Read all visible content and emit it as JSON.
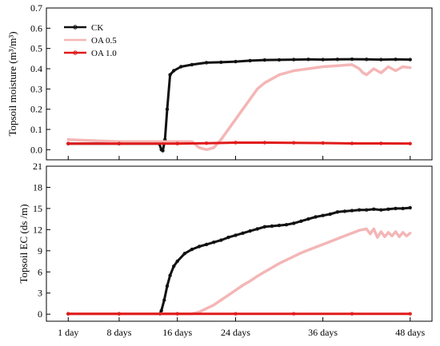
{
  "chart_data": {
    "type": "line",
    "x_tick_labels": [
      "1 day",
      "8 days",
      "16 days",
      "24 days",
      "36 days",
      "48 days"
    ],
    "x_tick_positions": [
      1,
      8,
      16,
      24,
      36,
      48
    ],
    "xlim": [
      -2,
      51
    ],
    "series_styles": [
      {
        "name": "CK",
        "color": "#111111",
        "marker": "circle"
      },
      {
        "name": "OA 0.5",
        "color": "#f4b6b6",
        "marker": "none"
      },
      {
        "name": "OA 1.0",
        "color": "#e01b1b",
        "marker": "circle"
      }
    ],
    "panels": [
      {
        "ylabel": "Topsoil moisture (m³/m³)",
        "ylim": [
          -0.05,
          0.7
        ],
        "yticks": [
          0.0,
          0.1,
          0.2,
          0.3,
          0.4,
          0.5,
          0.6,
          0.7
        ],
        "ytick_labels": [
          "0.0",
          "0.1",
          "0.2",
          "0.3",
          "0.4",
          "0.5",
          "0.6",
          "0.7"
        ],
        "show_legend": true,
        "legend_position": "top-left",
        "series": [
          {
            "name": "CK",
            "points": [
              [
                1,
                0.03
              ],
              [
                8,
                0.03
              ],
              [
                13.5,
                0.03
              ],
              [
                13.8,
                0.0
              ],
              [
                14.0,
                -0.005
              ],
              [
                14.3,
                0.05
              ],
              [
                14.6,
                0.2
              ],
              [
                15.0,
                0.37
              ],
              [
                15.5,
                0.39
              ],
              [
                16.5,
                0.41
              ],
              [
                18,
                0.42
              ],
              [
                20,
                0.43
              ],
              [
                22,
                0.432
              ],
              [
                24,
                0.435
              ],
              [
                26,
                0.44
              ],
              [
                28,
                0.443
              ],
              [
                30,
                0.444
              ],
              [
                32,
                0.445
              ],
              [
                34,
                0.446
              ],
              [
                36,
                0.445
              ],
              [
                38,
                0.446
              ],
              [
                40,
                0.447
              ],
              [
                42,
                0.446
              ],
              [
                44,
                0.445
              ],
              [
                46,
                0.446
              ],
              [
                48,
                0.445
              ]
            ]
          },
          {
            "name": "OA 0.5",
            "points": [
              [
                1,
                0.05
              ],
              [
                4,
                0.045
              ],
              [
                8,
                0.04
              ],
              [
                12,
                0.04
              ],
              [
                15,
                0.04
              ],
              [
                18,
                0.04
              ],
              [
                19,
                0.01
              ],
              [
                20,
                0.0
              ],
              [
                21,
                0.01
              ],
              [
                22,
                0.05
              ],
              [
                23,
                0.1
              ],
              [
                24,
                0.15
              ],
              [
                25,
                0.2
              ],
              [
                26,
                0.25
              ],
              [
                27,
                0.3
              ],
              [
                28,
                0.33
              ],
              [
                29,
                0.35
              ],
              [
                30,
                0.37
              ],
              [
                31,
                0.38
              ],
              [
                32,
                0.39
              ],
              [
                34,
                0.4
              ],
              [
                36,
                0.41
              ],
              [
                38,
                0.415
              ],
              [
                40,
                0.42
              ],
              [
                41,
                0.4
              ],
              [
                41.5,
                0.38
              ],
              [
                42,
                0.37
              ],
              [
                43,
                0.4
              ],
              [
                44,
                0.38
              ],
              [
                45,
                0.41
              ],
              [
                46,
                0.39
              ],
              [
                47,
                0.41
              ],
              [
                48,
                0.405
              ]
            ]
          },
          {
            "name": "OA 1.0",
            "points": [
              [
                1,
                0.03
              ],
              [
                8,
                0.03
              ],
              [
                16,
                0.03
              ],
              [
                20,
                0.032
              ],
              [
                24,
                0.035
              ],
              [
                28,
                0.035
              ],
              [
                32,
                0.034
              ],
              [
                36,
                0.033
              ],
              [
                40,
                0.031
              ],
              [
                44,
                0.031
              ],
              [
                48,
                0.03
              ]
            ]
          }
        ]
      },
      {
        "ylabel": "Topsoil EC (ds /m)",
        "ylim": [
          -1,
          21
        ],
        "yticks": [
          0,
          3,
          6,
          9,
          12,
          15,
          18,
          21
        ],
        "ytick_labels": [
          "0",
          "3",
          "6",
          "9",
          "12",
          "15",
          "18",
          "21"
        ],
        "show_legend": false,
        "series": [
          {
            "name": "CK",
            "points": [
              [
                1,
                0.05
              ],
              [
                8,
                0.05
              ],
              [
                13.6,
                0.05
              ],
              [
                13.8,
                0.5
              ],
              [
                14.2,
                2
              ],
              [
                14.6,
                4
              ],
              [
                15,
                5.5
              ],
              [
                15.5,
                6.8
              ],
              [
                16,
                7.5
              ],
              [
                17,
                8.6
              ],
              [
                18,
                9.2
              ],
              [
                19,
                9.6
              ],
              [
                20,
                9.9
              ],
              [
                21,
                10.2
              ],
              [
                22,
                10.5
              ],
              [
                23,
                10.9
              ],
              [
                24,
                11.2
              ],
              [
                25,
                11.5
              ],
              [
                26,
                11.8
              ],
              [
                27,
                12.1
              ],
              [
                28,
                12.4
              ],
              [
                29,
                12.5
              ],
              [
                30,
                12.6
              ],
              [
                31,
                12.7
              ],
              [
                32,
                12.9
              ],
              [
                33,
                13.2
              ],
              [
                34,
                13.5
              ],
              [
                35,
                13.8
              ],
              [
                36,
                14.0
              ],
              [
                37,
                14.2
              ],
              [
                38,
                14.5
              ],
              [
                39,
                14.6
              ],
              [
                40,
                14.7
              ],
              [
                41,
                14.8
              ],
              [
                42,
                14.8
              ],
              [
                43,
                14.9
              ],
              [
                44,
                14.8
              ],
              [
                45,
                14.9
              ],
              [
                46,
                15.0
              ],
              [
                47,
                15.0
              ],
              [
                48,
                15.1
              ]
            ]
          },
          {
            "name": "OA 0.5",
            "points": [
              [
                1,
                0.05
              ],
              [
                8,
                0.05
              ],
              [
                15,
                0.05
              ],
              [
                18,
                0.05
              ],
              [
                19,
                0.3
              ],
              [
                20,
                0.8
              ],
              [
                21,
                1.3
              ],
              [
                22,
                2.0
              ],
              [
                23,
                2.7
              ],
              [
                24,
                3.4
              ],
              [
                25,
                4.1
              ],
              [
                26,
                4.7
              ],
              [
                27,
                5.4
              ],
              [
                28,
                6.0
              ],
              [
                29,
                6.6
              ],
              [
                30,
                7.2
              ],
              [
                31,
                7.7
              ],
              [
                32,
                8.2
              ],
              [
                33,
                8.7
              ],
              [
                34,
                9.1
              ],
              [
                35,
                9.5
              ],
              [
                36,
                9.9
              ],
              [
                37,
                10.3
              ],
              [
                38,
                10.7
              ],
              [
                39,
                11.1
              ],
              [
                40,
                11.5
              ],
              [
                41,
                11.9
              ],
              [
                42,
                12.1
              ],
              [
                42.5,
                11.4
              ],
              [
                43,
                12.1
              ],
              [
                43.5,
                10.9
              ],
              [
                44,
                11.7
              ],
              [
                44.5,
                11.0
              ],
              [
                45,
                11.6
              ],
              [
                45.5,
                11.1
              ],
              [
                46,
                11.7
              ],
              [
                46.5,
                11.0
              ],
              [
                47,
                11.6
              ],
              [
                47.5,
                11.1
              ],
              [
                48,
                11.5
              ]
            ]
          },
          {
            "name": "OA 1.0",
            "points": [
              [
                1,
                0.05
              ],
              [
                8,
                0.05
              ],
              [
                16,
                0.05
              ],
              [
                24,
                0.05
              ],
              [
                32,
                0.05
              ],
              [
                40,
                0.05
              ],
              [
                48,
                0.05
              ]
            ]
          }
        ]
      }
    ]
  }
}
